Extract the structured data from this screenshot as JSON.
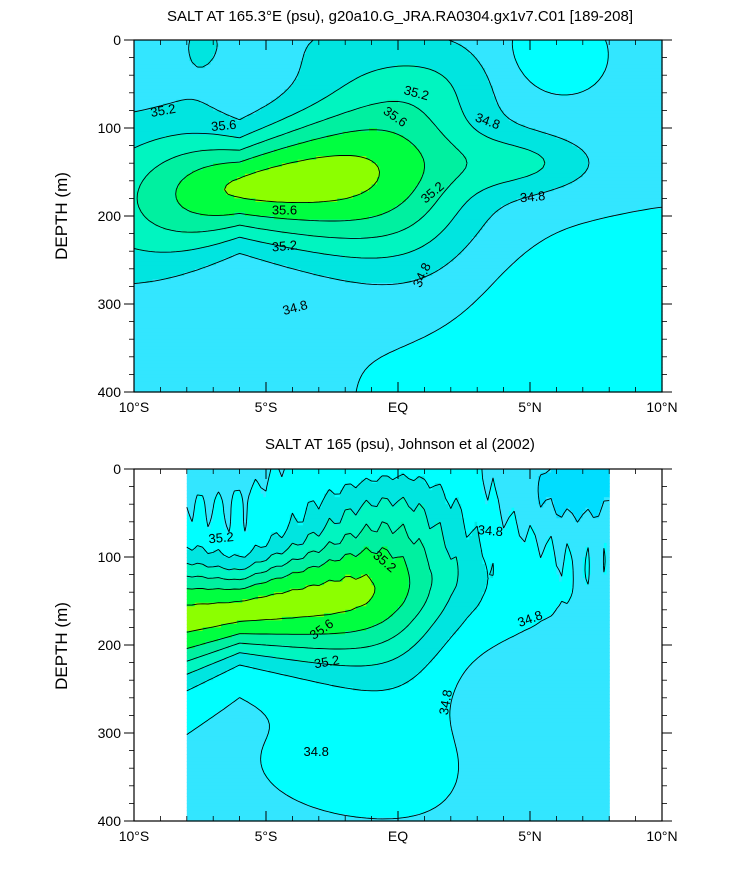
{
  "chart_data": [
    {
      "type": "heatmap",
      "panel": "top",
      "title": "SALT AT 165.3°E (psu), g20a10.G_JRA.RA0304.gx1v7.C01 [189-208]",
      "xlabel": "",
      "ylabel": "DEPTH (m)",
      "xlim": [
        -10,
        10
      ],
      "ylim": [
        400,
        0
      ],
      "data_xlim": [
        -10,
        10
      ],
      "x_ticks": [
        {
          "v": -10,
          "label": "10°S"
        },
        {
          "v": -5,
          "label": "5°S"
        },
        {
          "v": 0,
          "label": "EQ"
        },
        {
          "v": 5,
          "label": "5°N"
        },
        {
          "v": 10,
          "label": "10°N"
        }
      ],
      "y_ticks": [
        {
          "v": 0,
          "label": "0"
        },
        {
          "v": 100,
          "label": "100"
        },
        {
          "v": 200,
          "label": "200"
        },
        {
          "v": 300,
          "label": "300"
        },
        {
          "v": 400,
          "label": "400"
        }
      ],
      "contour_levels": [
        34.6,
        34.8,
        35.0,
        35.2,
        35.4,
        35.6,
        35.8
      ],
      "fill_colors": [
        "#00ffff",
        "#33e6ff",
        "#00e5e0",
        "#00f5c0",
        "#00f0a0",
        "#00ff40",
        "#8cff00",
        "#ffff00",
        "#ffe02a"
      ],
      "contour_labels": [
        {
          "text": "35.2",
          "x": -8.9,
          "y": 80,
          "angle": -10
        },
        {
          "text": "35.6",
          "x": -6.6,
          "y": 97,
          "angle": -5
        },
        {
          "text": "35.2",
          "x": 0.7,
          "y": 60,
          "angle": 15
        },
        {
          "text": "35.6",
          "x": -0.1,
          "y": 87,
          "angle": 35
        },
        {
          "text": "34.8",
          "x": 3.4,
          "y": 92,
          "angle": 20
        },
        {
          "text": "35.6",
          "x": -4.3,
          "y": 193,
          "angle": 0
        },
        {
          "text": "35.2",
          "x": 1.3,
          "y": 173,
          "angle": -40
        },
        {
          "text": "34.8",
          "x": 5.1,
          "y": 178,
          "angle": -5
        },
        {
          "text": "35.2",
          "x": -4.3,
          "y": 234,
          "angle": -5
        },
        {
          "text": "34.8",
          "x": 0.9,
          "y": 267,
          "angle": -65
        },
        {
          "text": "34.8",
          "x": -3.9,
          "y": 304,
          "angle": -15
        }
      ]
    },
    {
      "type": "heatmap",
      "panel": "bottom",
      "title": "SALT AT 165 (psu), Johnson et al (2002)",
      "xlabel": "",
      "ylabel": "DEPTH (m)",
      "xlim": [
        -10,
        10
      ],
      "ylim": [
        400,
        0
      ],
      "data_xlim": [
        -8,
        8
      ],
      "x_ticks": [
        {
          "v": -10,
          "label": "10°S"
        },
        {
          "v": -5,
          "label": "5°S"
        },
        {
          "v": 0,
          "label": "EQ"
        },
        {
          "v": 5,
          "label": "5°N"
        },
        {
          "v": 10,
          "label": "10°N"
        }
      ],
      "y_ticks": [
        {
          "v": 0,
          "label": "0"
        },
        {
          "v": 100,
          "label": "100"
        },
        {
          "v": 200,
          "label": "200"
        },
        {
          "v": 300,
          "label": "300"
        },
        {
          "v": 400,
          "label": "400"
        }
      ],
      "contour_levels": [
        34.4,
        34.6,
        34.8,
        35.0,
        35.2,
        35.4,
        35.6,
        35.8
      ],
      "fill_colors": [
        "#00ddff",
        "#33e6ff",
        "#00ffff",
        "#00e5e0",
        "#00f5c0",
        "#00f0a0",
        "#00ff40",
        "#8cff00",
        "#ffff00",
        "#ffe02a"
      ],
      "contour_labels": [
        {
          "text": "35.2",
          "x": -6.7,
          "y": 78,
          "angle": -5
        },
        {
          "text": "35.2",
          "x": -0.5,
          "y": 105,
          "angle": 40
        },
        {
          "text": "34.8",
          "x": 3.5,
          "y": 70,
          "angle": 5
        },
        {
          "text": "35.6",
          "x": -2.9,
          "y": 182,
          "angle": -35
        },
        {
          "text": "34.8",
          "x": 5.0,
          "y": 170,
          "angle": -20
        },
        {
          "text": "35.2",
          "x": -2.7,
          "y": 219,
          "angle": -10
        },
        {
          "text": "34.8",
          "x": 1.8,
          "y": 265,
          "angle": -80
        },
        {
          "text": "34.8",
          "x": -3.1,
          "y": 321,
          "angle": 0
        }
      ]
    }
  ]
}
